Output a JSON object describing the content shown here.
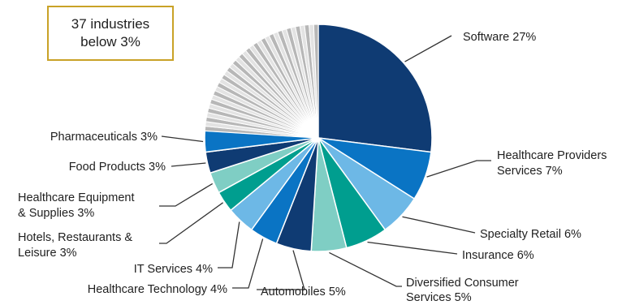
{
  "chart_data": {
    "type": "pie",
    "note": "37 industries below 3%",
    "slices": [
      {
        "label": "Software 27%",
        "value": 27,
        "color": "#0f3b73"
      },
      {
        "label": "Healthcare Providers Services 7%",
        "value": 7,
        "color": "#0a74c4"
      },
      {
        "label": "Specialty Retail 6%",
        "value": 6,
        "color": "#6db8e6"
      },
      {
        "label": "Insurance 6%",
        "value": 6,
        "color": "#009e8f"
      },
      {
        "label": "Diversified Consumer Services 5%",
        "value": 5,
        "color": "#7fcec4"
      },
      {
        "label": "Automobiles 5%",
        "value": 5,
        "color": "#0f3b73"
      },
      {
        "label": "Healthcare Technology 4%",
        "value": 4,
        "color": "#0a74c4"
      },
      {
        "label": "IT Services 4%",
        "value": 4,
        "color": "#6db8e6"
      },
      {
        "label": "Hotels, Restaurants & Leisure 3%",
        "value": 3,
        "color": "#009e8f"
      },
      {
        "label": "Healthcare Equipment & Supplies 3%",
        "value": 3,
        "color": "#7fcec4"
      },
      {
        "label": "Food Products 3%",
        "value": 3,
        "color": "#0f3b73"
      },
      {
        "label": "Pharmaceuticals 3%",
        "value": 3,
        "color": "#0a74c4"
      }
    ],
    "other_colors": [
      "#b7b7b7",
      "#e3e3e3"
    ]
  }
}
